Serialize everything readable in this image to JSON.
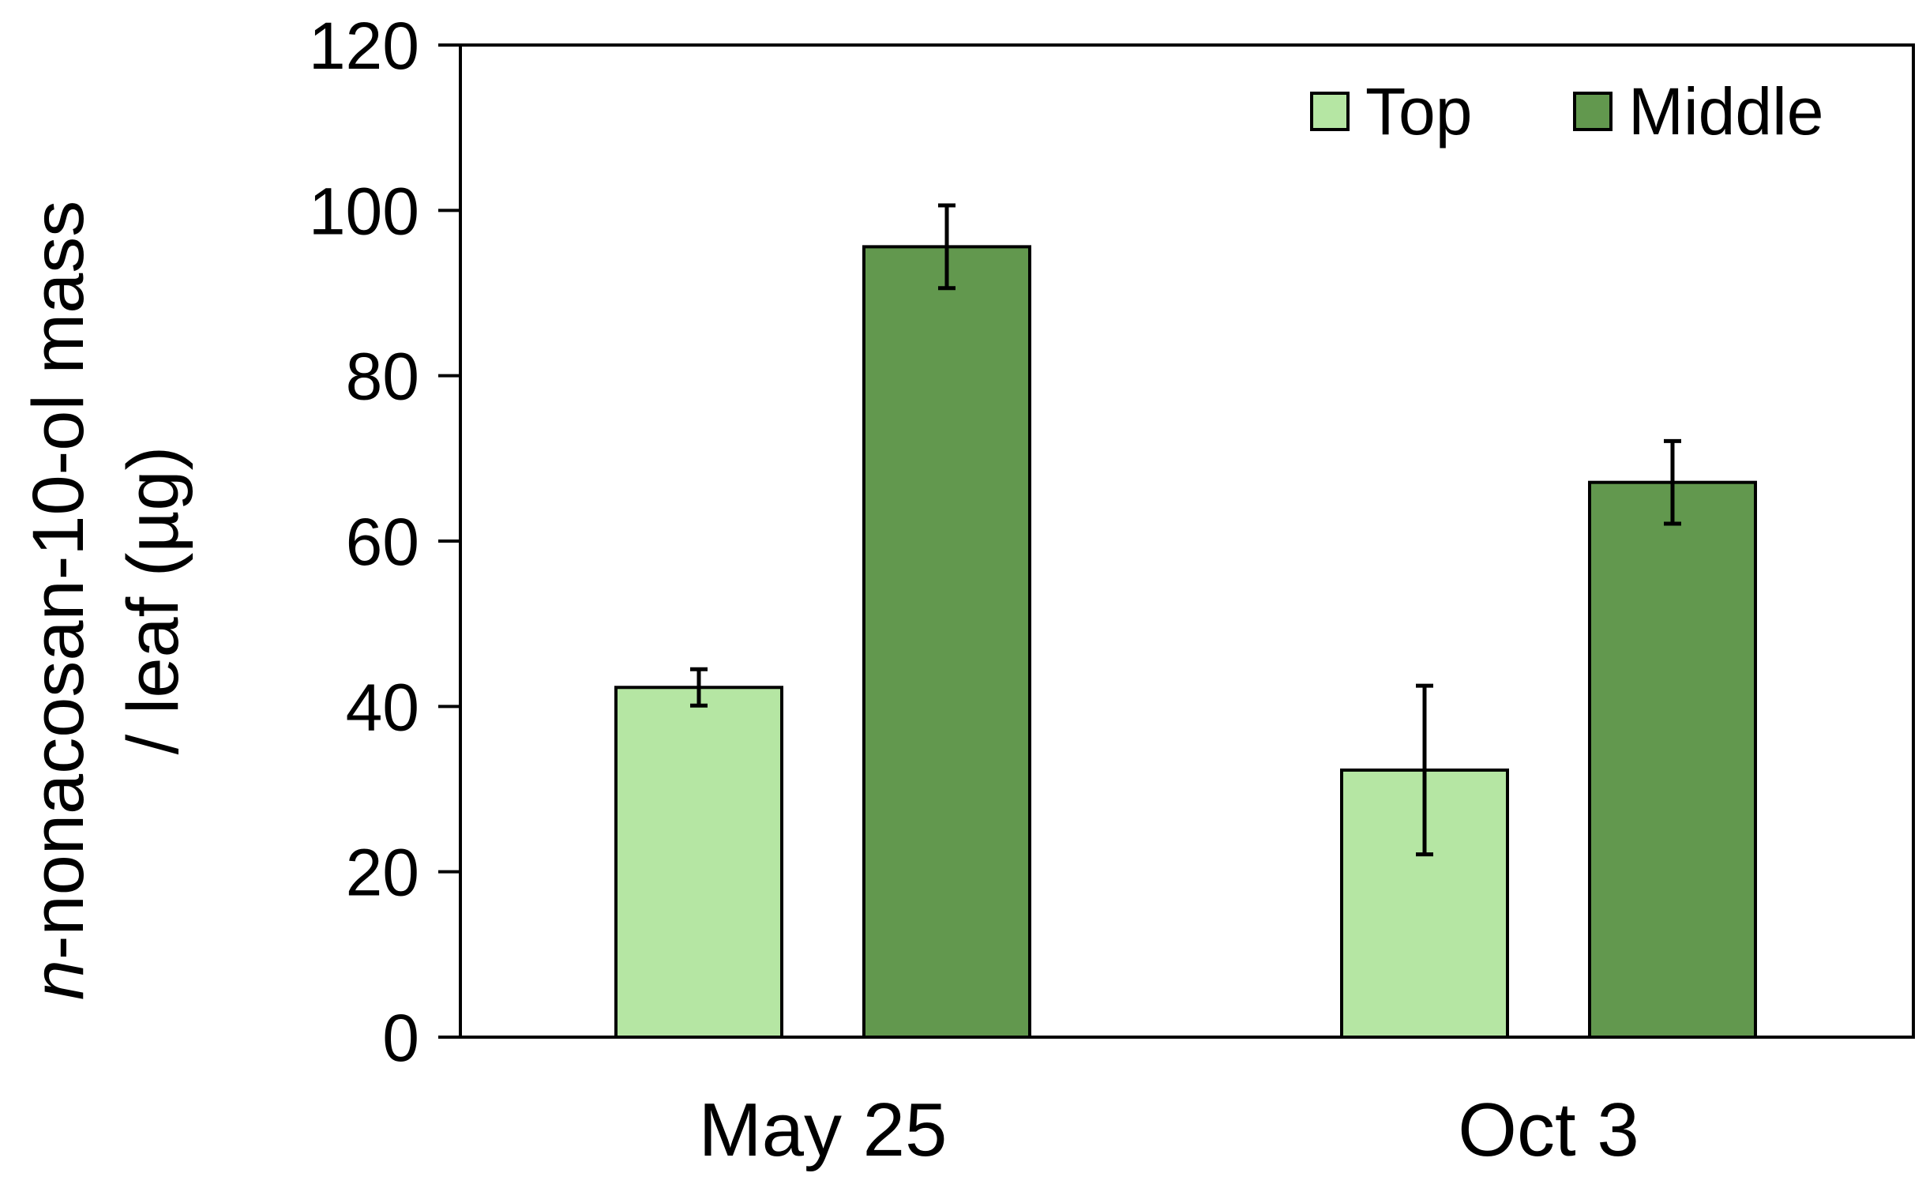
{
  "chart_data": {
    "type": "bar",
    "categories": [
      "May 25",
      "Oct 3"
    ],
    "series": [
      {
        "name": "Top",
        "values": [
          42.3,
          32.3
        ],
        "errors": [
          2.2,
          10.2
        ],
        "color": "#b5e6a3"
      },
      {
        "name": "Middle",
        "values": [
          95.6,
          67.1
        ],
        "errors": [
          5.0,
          5.0
        ],
        "color": "#62984e"
      }
    ],
    "ylim": [
      0,
      120
    ],
    "yticks": [
      "0",
      "20",
      "40",
      "60",
      "80",
      "100",
      "120"
    ],
    "ylabel_line1_italic": "n",
    "ylabel_line1_rest": "-nonacosan-10-ol mass",
    "ylabel_line2": "/ leaf (µg)",
    "legend_position": "top-right",
    "grid": false
  }
}
